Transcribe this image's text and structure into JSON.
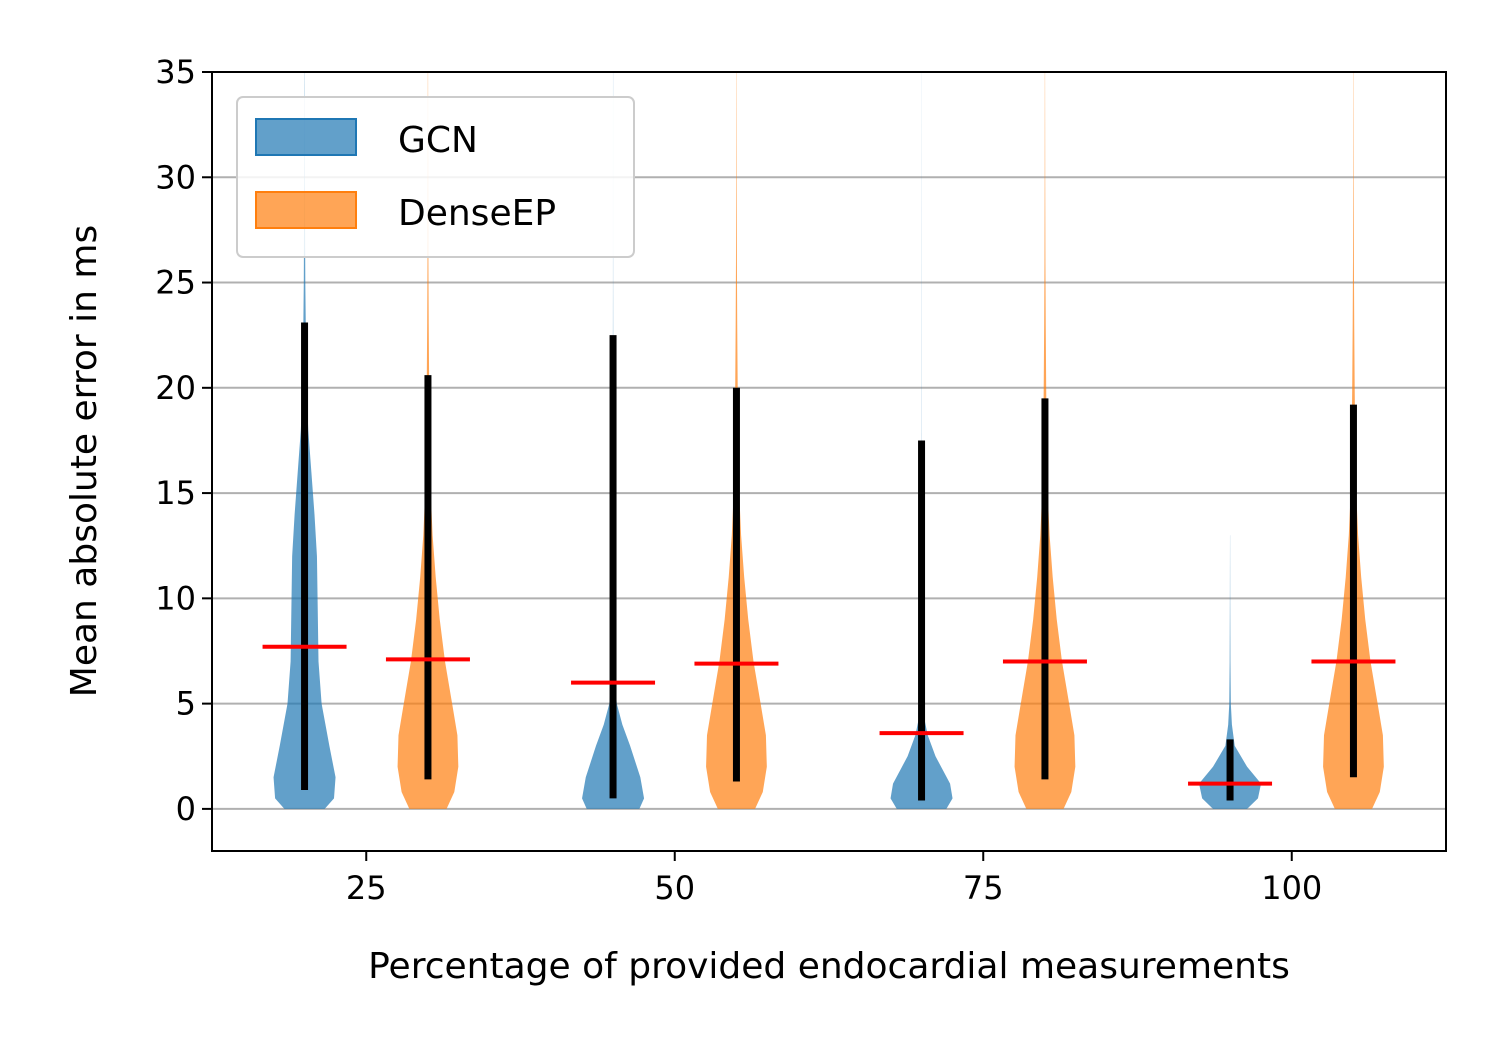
{
  "chart_data": {
    "type": "violin",
    "xlabel": "Percentage of provided endocardial measurements",
    "ylabel": "Mean absolute error in ms",
    "ylim": [
      -2,
      35
    ],
    "xlim": [
      12.5,
      112.5
    ],
    "x_ticks": [
      25,
      50,
      75,
      100
    ],
    "x_tick_labels": [
      "25",
      "50",
      "75",
      "100"
    ],
    "y_ticks": [
      0,
      5,
      10,
      15,
      20,
      25,
      30,
      35
    ],
    "y_tick_labels": [
      "0",
      "5",
      "10",
      "15",
      "20",
      "25",
      "30",
      "35"
    ],
    "grid": "horizontal",
    "legend_position": "upper-left",
    "series": [
      {
        "name": "GCN",
        "color": "#1f77b4",
        "groups": [
          {
            "x": 20,
            "whisker_low": 0.9,
            "whisker_high": 23.1,
            "mean": 7.7,
            "max": 35,
            "profile": [
              [
                0,
                0.65
              ],
              [
                0.5,
                0.95
              ],
              [
                1.5,
                1.0
              ],
              [
                3,
                0.8
              ],
              [
                5,
                0.55
              ],
              [
                7,
                0.45
              ],
              [
                10,
                0.42
              ],
              [
                12,
                0.4
              ],
              [
                14,
                0.32
              ],
              [
                16,
                0.22
              ],
              [
                18,
                0.12
              ],
              [
                20,
                0.06
              ],
              [
                25,
                0.025
              ],
              [
                30,
                0.01
              ],
              [
                35,
                0.003
              ]
            ]
          },
          {
            "x": 45,
            "whisker_low": 0.5,
            "whisker_high": 22.5,
            "mean": 6.0,
            "max": 35,
            "profile": [
              [
                0,
                0.85
              ],
              [
                0.5,
                1.0
              ],
              [
                1.5,
                0.88
              ],
              [
                3,
                0.55
              ],
              [
                4,
                0.3
              ],
              [
                5,
                0.12
              ],
              [
                6,
                0.07
              ],
              [
                8,
                0.04
              ],
              [
                10,
                0.025
              ],
              [
                15,
                0.012
              ],
              [
                20,
                0.006
              ],
              [
                25,
                0.003
              ],
              [
                35,
                0.002
              ]
            ]
          },
          {
            "x": 70,
            "whisker_low": 0.4,
            "whisker_high": 17.5,
            "mean": 3.6,
            "max": 35,
            "profile": [
              [
                0,
                0.8
              ],
              [
                0.5,
                1.0
              ],
              [
                1.2,
                0.92
              ],
              [
                2.5,
                0.45
              ],
              [
                3.5,
                0.2
              ],
              [
                4.5,
                0.06
              ],
              [
                6,
                0.015
              ],
              [
                10,
                0.006
              ],
              [
                18,
                0.003
              ],
              [
                35,
                0.001
              ]
            ]
          },
          {
            "x": 95,
            "whisker_low": 0.4,
            "whisker_high": 3.3,
            "mean": 1.2,
            "max": 13,
            "profile": [
              [
                0,
                0.55
              ],
              [
                0.5,
                0.9
              ],
              [
                1.2,
                1.0
              ],
              [
                2,
                0.55
              ],
              [
                3,
                0.15
              ],
              [
                4,
                0.06
              ],
              [
                5,
                0.025
              ],
              [
                7,
                0.012
              ],
              [
                10,
                0.005
              ],
              [
                13,
                0.002
              ]
            ]
          }
        ]
      },
      {
        "name": "DenseEP",
        "color": "#ff7f0e",
        "groups": [
          {
            "x": 30,
            "whisker_low": 1.4,
            "whisker_high": 20.6,
            "mean": 7.1,
            "max": 35,
            "profile": [
              [
                0,
                0.6
              ],
              [
                0.8,
                0.85
              ],
              [
                2,
                0.98
              ],
              [
                3.5,
                0.95
              ],
              [
                5,
                0.78
              ],
              [
                7,
                0.55
              ],
              [
                9,
                0.38
              ],
              [
                11,
                0.25
              ],
              [
                13,
                0.15
              ],
              [
                15,
                0.09
              ],
              [
                17,
                0.06
              ],
              [
                20,
                0.04
              ],
              [
                23,
                0.025
              ],
              [
                26,
                0.015
              ],
              [
                30,
                0.008
              ],
              [
                35,
                0.004
              ]
            ]
          },
          {
            "x": 55,
            "whisker_low": 1.3,
            "whisker_high": 20.0,
            "mean": 6.9,
            "max": 35,
            "profile": [
              [
                0,
                0.6
              ],
              [
                0.8,
                0.85
              ],
              [
                2,
                0.98
              ],
              [
                3.5,
                0.95
              ],
              [
                5,
                0.78
              ],
              [
                7,
                0.55
              ],
              [
                9,
                0.38
              ],
              [
                11,
                0.25
              ],
              [
                13,
                0.15
              ],
              [
                15,
                0.09
              ],
              [
                17,
                0.06
              ],
              [
                20,
                0.04
              ],
              [
                23,
                0.025
              ],
              [
                26,
                0.015
              ],
              [
                30,
                0.008
              ],
              [
                35,
                0.004
              ]
            ]
          },
          {
            "x": 80,
            "whisker_low": 1.4,
            "whisker_high": 19.5,
            "mean": 7.0,
            "max": 35,
            "profile": [
              [
                0,
                0.6
              ],
              [
                0.8,
                0.85
              ],
              [
                2,
                0.98
              ],
              [
                3.5,
                0.95
              ],
              [
                5,
                0.78
              ],
              [
                7,
                0.55
              ],
              [
                9,
                0.38
              ],
              [
                11,
                0.25
              ],
              [
                13,
                0.15
              ],
              [
                15,
                0.09
              ],
              [
                17,
                0.06
              ],
              [
                20,
                0.04
              ],
              [
                23,
                0.025
              ],
              [
                26,
                0.015
              ],
              [
                30,
                0.008
              ],
              [
                35,
                0.004
              ]
            ]
          },
          {
            "x": 105,
            "whisker_low": 1.5,
            "whisker_high": 19.2,
            "mean": 7.0,
            "max": 35,
            "profile": [
              [
                0,
                0.6
              ],
              [
                0.8,
                0.85
              ],
              [
                2,
                0.98
              ],
              [
                3.5,
                0.95
              ],
              [
                5,
                0.78
              ],
              [
                7,
                0.55
              ],
              [
                9,
                0.38
              ],
              [
                11,
                0.25
              ],
              [
                13,
                0.15
              ],
              [
                15,
                0.09
              ],
              [
                17,
                0.06
              ],
              [
                20,
                0.04
              ],
              [
                23,
                0.025
              ],
              [
                26,
                0.015
              ],
              [
                30,
                0.008
              ],
              [
                35,
                0.004
              ]
            ]
          }
        ]
      }
    ]
  }
}
